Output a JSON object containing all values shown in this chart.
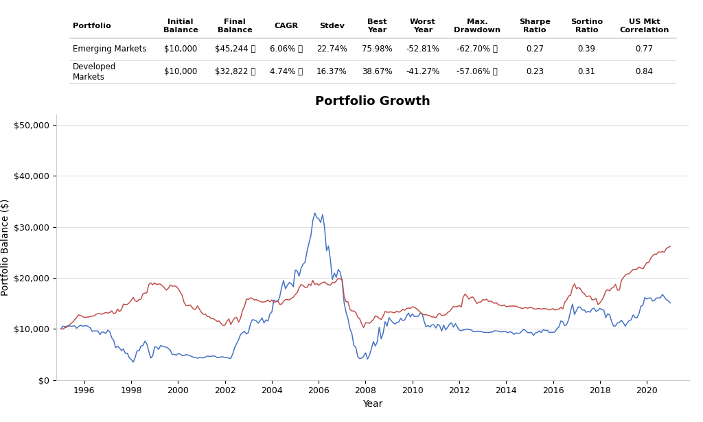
{
  "title": "Portfolio Growth",
  "xlabel": "Year",
  "ylabel": "Portfolio Balance ($)",
  "background_color": "#ffffff",
  "em_color": "#4472C4",
  "dm_color": "#C0504D",
  "ylim": [
    0,
    52000
  ],
  "yticks": [
    0,
    10000,
    20000,
    30000,
    40000,
    50000
  ],
  "xticks": [
    1996,
    1998,
    2000,
    2002,
    2004,
    2006,
    2008,
    2010,
    2012,
    2014,
    2016,
    2018,
    2020
  ],
  "xlim_start": 1994.8,
  "xlim_end": 2021.8,
  "initial_value": 10000,
  "em_annual_returns": [
    0.06,
    -0.12,
    -0.27,
    0.65,
    -0.31,
    -0.05,
    -0.08,
    0.56,
    0.26,
    0.35,
    0.33,
    0.4,
    -0.53,
    0.79,
    0.19,
    -0.18,
    0.18,
    -0.03,
    0.0,
    -0.15,
    0.11,
    0.37,
    -0.14,
    0.18,
    0.18,
    0.05
  ],
  "dm_annual_returns": [
    0.14,
    0.02,
    0.2,
    0.27,
    -0.13,
    -0.21,
    -0.15,
    0.4,
    0.2,
    0.14,
    0.26,
    0.11,
    -0.41,
    0.32,
    0.08,
    -0.12,
    0.17,
    0.23,
    -0.04,
    0.0,
    0.02,
    0.25,
    -0.14,
    0.22,
    0.08,
    0.08
  ],
  "em_vol_scale": 1.8,
  "dm_vol_scale": 1.0
}
